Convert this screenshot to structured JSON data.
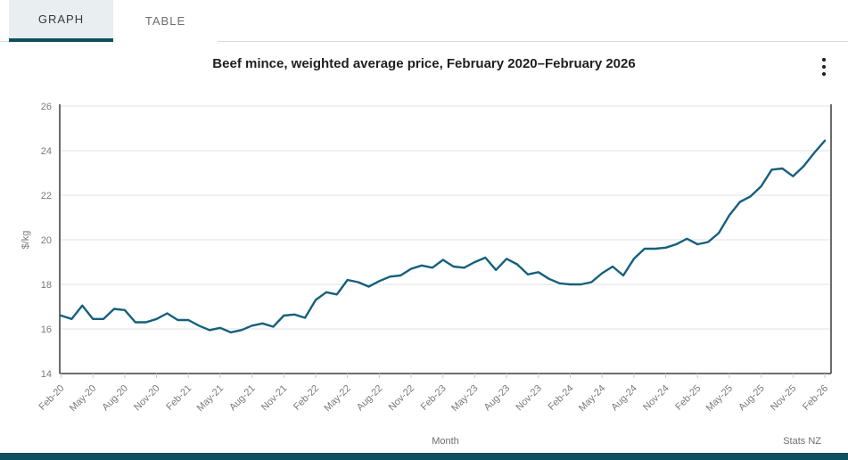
{
  "tabs": [
    {
      "label": "GRAPH",
      "active": true
    },
    {
      "label": "TABLE",
      "active": false
    }
  ],
  "title": "Beef mince, weighted average price, February 2020–February 2026",
  "footer": {
    "source": "Stats NZ"
  },
  "colors": {
    "line": "#15607c",
    "accent": "#0e4f60",
    "active_tab_bg": "#e9eef0",
    "grid": "#e2e2e2",
    "axis": "#3c3c3c",
    "tick_text": "#7a7a7a",
    "title_text": "#1f1f1f"
  },
  "chart_data": {
    "type": "line",
    "title": "Beef mince, weighted average price, February 2020–February 2026",
    "xlabel": "Month",
    "ylabel": "$/kg",
    "source": "Stats NZ",
    "ylim": [
      14,
      26
    ],
    "ytick_step": 2,
    "xtick_every": 3,
    "grid": "horizontal",
    "legend": "none",
    "x": [
      "Feb-20",
      "Mar-20",
      "Apr-20",
      "May-20",
      "Jun-20",
      "Jul-20",
      "Aug-20",
      "Sep-20",
      "Oct-20",
      "Nov-20",
      "Dec-20",
      "Jan-21",
      "Feb-21",
      "Mar-21",
      "Apr-21",
      "May-21",
      "Jun-21",
      "Jul-21",
      "Aug-21",
      "Sep-21",
      "Oct-21",
      "Nov-21",
      "Dec-21",
      "Jan-22",
      "Feb-22",
      "Mar-22",
      "Apr-22",
      "May-22",
      "Jun-22",
      "Jul-22",
      "Aug-22",
      "Sep-22",
      "Oct-22",
      "Nov-22",
      "Dec-22",
      "Jan-23",
      "Feb-23",
      "Mar-23",
      "Apr-23",
      "May-23",
      "Jun-23",
      "Jul-23",
      "Aug-23",
      "Sep-23",
      "Oct-23",
      "Nov-23",
      "Dec-23",
      "Jan-24",
      "Feb-24",
      "Mar-24",
      "Apr-24",
      "May-24",
      "Jun-24",
      "Jul-24",
      "Aug-24",
      "Sep-24",
      "Oct-24",
      "Nov-24",
      "Dec-24",
      "Jan-25",
      "Feb-25",
      "Mar-25",
      "Apr-25",
      "May-25",
      "Jun-25",
      "Jul-25",
      "Aug-25",
      "Sep-25",
      "Oct-25",
      "Nov-25",
      "Dec-25",
      "Jan-26",
      "Feb-26"
    ],
    "series": [
      {
        "name": "Beef mince, weighted average price ($/kg)",
        "values": [
          16.6,
          16.45,
          17.05,
          16.45,
          16.45,
          16.9,
          16.85,
          16.3,
          16.3,
          16.45,
          16.7,
          16.4,
          16.4,
          16.15,
          15.95,
          16.05,
          15.85,
          15.95,
          16.15,
          16.25,
          16.1,
          16.6,
          16.65,
          16.5,
          17.3,
          17.65,
          17.55,
          18.2,
          18.1,
          17.9,
          18.15,
          18.35,
          18.4,
          18.7,
          18.85,
          18.75,
          19.1,
          18.8,
          18.75,
          19.0,
          19.2,
          18.65,
          19.15,
          18.9,
          18.45,
          18.55,
          18.25,
          18.05,
          18.0,
          18.0,
          18.1,
          18.5,
          18.8,
          18.4,
          19.15,
          19.6,
          19.6,
          19.65,
          19.8,
          20.05,
          19.8,
          19.9,
          20.3,
          21.1,
          21.7,
          21.95,
          22.4,
          23.15,
          23.2,
          22.85,
          23.3,
          23.9,
          24.45
        ]
      }
    ]
  }
}
